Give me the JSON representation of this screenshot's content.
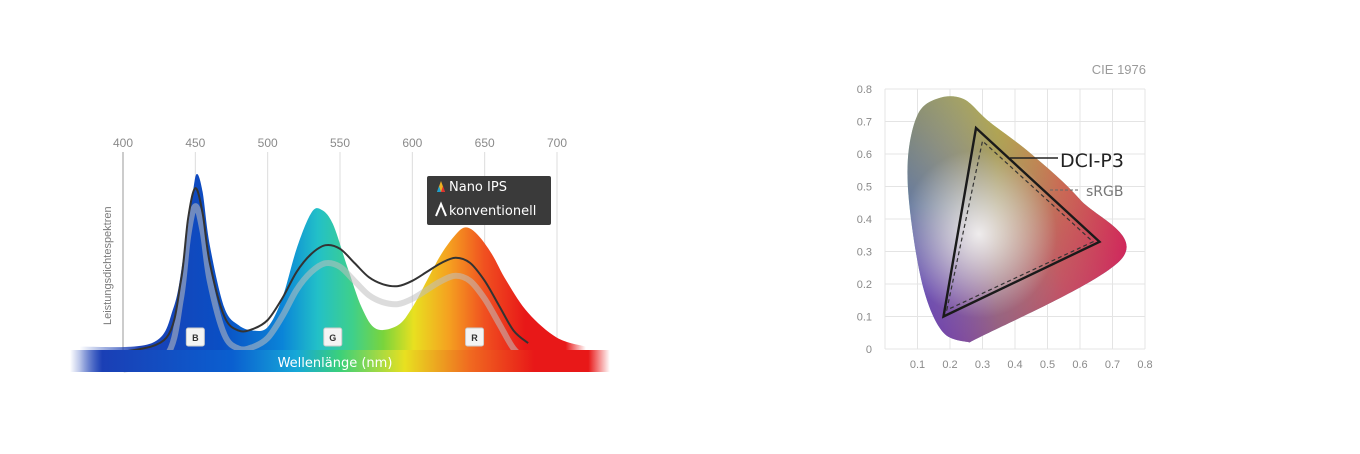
{
  "chart_data": [
    {
      "type": "area",
      "xlabel": "Wellenlänge (nm)",
      "ylabel": "Leistungsdichtespektren",
      "x_ticks": [
        "400",
        "450",
        "500",
        "550",
        "600",
        "650",
        "700"
      ],
      "xlim": [
        400,
        700
      ],
      "legend": {
        "position": "top-right",
        "entries": [
          "Nano IPS",
          "konventionell"
        ]
      },
      "badges": [
        {
          "label": "B",
          "x": 450
        },
        {
          "label": "G",
          "x": 545
        },
        {
          "label": "R",
          "x": 643
        }
      ],
      "series": [
        {
          "name": "Nano IPS",
          "x": [
            370,
            420,
            435,
            442,
            448,
            451,
            455,
            460,
            470,
            480,
            490,
            500,
            510,
            520,
            530,
            537,
            545,
            555,
            565,
            575,
            590,
            600,
            610,
            620,
            630,
            637,
            645,
            655,
            665,
            680,
            700,
            720
          ],
          "y": [
            0.03,
            0.05,
            0.25,
            0.55,
            0.88,
            1.0,
            0.9,
            0.6,
            0.25,
            0.15,
            0.12,
            0.14,
            0.3,
            0.58,
            0.78,
            0.8,
            0.72,
            0.48,
            0.25,
            0.13,
            0.15,
            0.25,
            0.4,
            0.55,
            0.66,
            0.7,
            0.66,
            0.55,
            0.4,
            0.22,
            0.08,
            0.03
          ]
        },
        {
          "name": "konventionell",
          "x": [
            400,
            430,
            440,
            445,
            450,
            455,
            460,
            470,
            480,
            490,
            500,
            510,
            520,
            530,
            540,
            550,
            560,
            570,
            580,
            590,
            600,
            610,
            620,
            630,
            640,
            650,
            660,
            670,
            680
          ],
          "y": [
            0.0,
            0.08,
            0.4,
            0.75,
            0.92,
            0.78,
            0.5,
            0.2,
            0.12,
            0.13,
            0.18,
            0.3,
            0.45,
            0.55,
            0.6,
            0.58,
            0.5,
            0.42,
            0.38,
            0.37,
            0.4,
            0.45,
            0.5,
            0.53,
            0.5,
            0.4,
            0.26,
            0.12,
            0.05
          ]
        }
      ]
    },
    {
      "type": "scatter",
      "title": "CIE 1976",
      "xlim": [
        0,
        0.8
      ],
      "ylim": [
        0,
        0.8
      ],
      "x_ticks": [
        "0.1",
        "0.2",
        "0.3",
        "0.4",
        "0.5",
        "0.6",
        "0.7",
        "0.8"
      ],
      "y_ticks": [
        "0",
        "0.1",
        "0.2",
        "0.3",
        "0.4",
        "0.5",
        "0.6",
        "0.7",
        "0.8"
      ],
      "gamuts": [
        {
          "name": "DCI-P3",
          "style": "solid",
          "points": [
            [
              0.18,
              0.1
            ],
            [
              0.28,
              0.68
            ],
            [
              0.66,
              0.33
            ]
          ]
        },
        {
          "name": "sRGB",
          "style": "dashed",
          "points": [
            [
              0.19,
              0.12
            ],
            [
              0.3,
              0.64
            ],
            [
              0.64,
              0.33
            ]
          ]
        }
      ],
      "locus": [
        [
          0.26,
          0.02
        ],
        [
          0.18,
          0.05
        ],
        [
          0.12,
          0.18
        ],
        [
          0.08,
          0.4
        ],
        [
          0.07,
          0.58
        ],
        [
          0.1,
          0.72
        ],
        [
          0.16,
          0.77
        ],
        [
          0.24,
          0.77
        ],
        [
          0.32,
          0.7
        ],
        [
          0.45,
          0.6
        ],
        [
          0.6,
          0.46
        ],
        [
          0.73,
          0.28
        ],
        [
          0.26,
          0.02
        ]
      ]
    }
  ]
}
